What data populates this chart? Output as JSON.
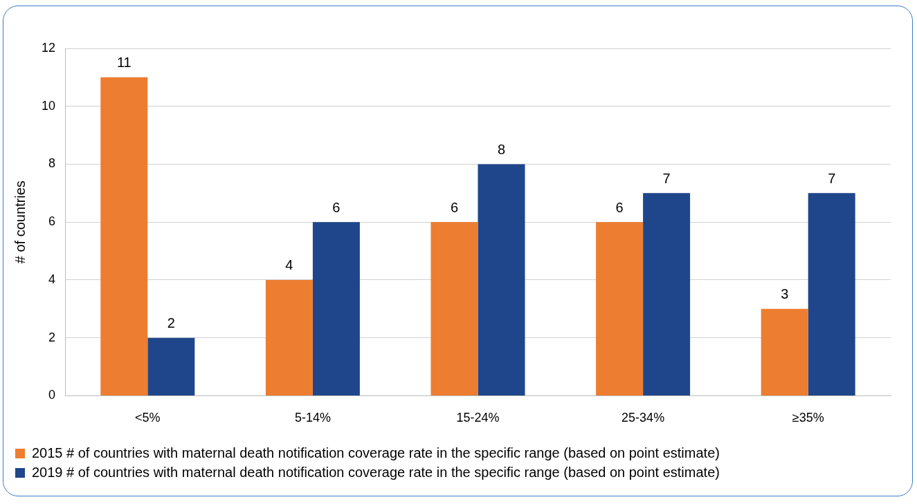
{
  "chart_data": {
    "type": "bar",
    "ylabel": "# of countries",
    "categories": [
      "<5%",
      "5-14%",
      "15-24%",
      "25-34%",
      "≥35%"
    ],
    "series": [
      {
        "name": "2015 # of countries with maternal death notification coverage rate in the specific range (based on point estimate)",
        "color": "#ed7d31",
        "values": [
          11,
          4,
          6,
          6,
          3
        ]
      },
      {
        "name": "2019 # of countries with maternal death notification coverage rate in the specific range (based on point estimate)",
        "color": "#1f468b",
        "values": [
          2,
          6,
          8,
          7,
          7
        ]
      }
    ],
    "ylim": [
      0,
      12
    ],
    "yticks": [
      0,
      2,
      4,
      6,
      8,
      10,
      12
    ],
    "grid": "y",
    "legend": "bottom",
    "data_labels": true
  }
}
